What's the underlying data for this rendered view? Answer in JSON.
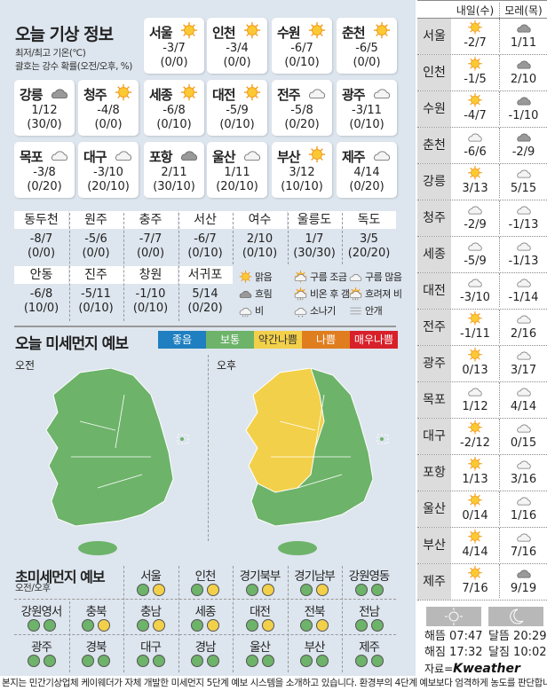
{
  "title": "오늘 기상 정보",
  "subtitle_1": "최저/최고 기온(℃)",
  "subtitle_2": "괄호는 강수 확률(오전/오후, %)",
  "cities": [
    {
      "name": "서울",
      "icon": "sun",
      "temp": "-3/7",
      "rain": "(0/0)"
    },
    {
      "name": "인천",
      "icon": "sun",
      "temp": "-3/4",
      "rain": "(0/0)"
    },
    {
      "name": "수원",
      "icon": "sun",
      "temp": "-6/7",
      "rain": "(0/10)"
    },
    {
      "name": "춘천",
      "icon": "sun",
      "temp": "-6/5",
      "rain": "(0/0)"
    },
    {
      "name": "강릉",
      "icon": "cloud-dark",
      "temp": "1/12",
      "rain": "(30/0)"
    },
    {
      "name": "청주",
      "icon": "sun",
      "temp": "-4/8",
      "rain": "(0/0)"
    },
    {
      "name": "세종",
      "icon": "sun",
      "temp": "-6/8",
      "rain": "(0/10)"
    },
    {
      "name": "대전",
      "icon": "sun",
      "temp": "-5/9",
      "rain": "(0/10)"
    },
    {
      "name": "전주",
      "icon": "cloud",
      "temp": "-5/8",
      "rain": "(0/20)"
    },
    {
      "name": "광주",
      "icon": "cloud",
      "temp": "-3/11",
      "rain": "(0/10)"
    },
    {
      "name": "목포",
      "icon": "cloud",
      "temp": "-3/8",
      "rain": "(0/20)"
    },
    {
      "name": "대구",
      "icon": "cloud",
      "temp": "-3/10",
      "rain": "(20/10)"
    },
    {
      "name": "포항",
      "icon": "cloud-dark",
      "temp": "2/11",
      "rain": "(30/10)"
    },
    {
      "name": "울산",
      "icon": "cloud",
      "temp": "1/11",
      "rain": "(20/10)"
    },
    {
      "name": "부산",
      "icon": "sun",
      "temp": "3/12",
      "rain": "(10/10)"
    },
    {
      "name": "제주",
      "icon": "cloud",
      "temp": "4/14",
      "rain": "(0/20)"
    }
  ],
  "small_cities": [
    {
      "name": "동두천",
      "temp": "-8/7",
      "rain": "(0/0)"
    },
    {
      "name": "원주",
      "temp": "-5/6",
      "rain": "(0/0)"
    },
    {
      "name": "충주",
      "temp": "-7/7",
      "rain": "(0/0)"
    },
    {
      "name": "서산",
      "temp": "-6/7",
      "rain": "(0/10)"
    },
    {
      "name": "여수",
      "temp": "2/10",
      "rain": "(0/10)"
    },
    {
      "name": "울릉도",
      "temp": "1/7",
      "rain": "(30/30)"
    },
    {
      "name": "독도",
      "temp": "3/5",
      "rain": "(20/20)"
    },
    {
      "name": "안동",
      "temp": "-6/8",
      "rain": "(10/0)"
    },
    {
      "name": "진주",
      "temp": "-5/11",
      "rain": "(0/10)"
    },
    {
      "name": "창원",
      "temp": "-1/10",
      "rain": "(0/10)"
    },
    {
      "name": "서귀포",
      "temp": "5/14",
      "rain": "(0/20)"
    }
  ],
  "legend": [
    {
      "icon": "sun",
      "label": "맑음"
    },
    {
      "icon": "sun-cloud",
      "label": "구름 조금"
    },
    {
      "icon": "cloud",
      "label": "구름 많음"
    },
    {
      "icon": "cloud-dark",
      "label": "흐림"
    },
    {
      "icon": "rain-sun",
      "label": "비온 후 갬"
    },
    {
      "icon": "sun-rain",
      "label": "흐려져 비"
    },
    {
      "icon": "rain",
      "label": "비"
    },
    {
      "icon": "shower",
      "label": "소나기"
    },
    {
      "icon": "fog",
      "label": "안개"
    }
  ],
  "dust": {
    "title": "오늘 미세먼지 예보",
    "scale": [
      {
        "label": "좋음",
        "color": "#1f7fc0"
      },
      {
        "label": "보통",
        "color": "#6db36a"
      },
      {
        "label": "약간나쁨",
        "color": "#f3d04a"
      },
      {
        "label": "나쁨",
        "color": "#e07d1f"
      },
      {
        "label": "매우나쁨",
        "color": "#d8202a"
      }
    ],
    "am_label": "오전",
    "pm_label": "오후"
  },
  "ultrafine": {
    "title": "초미세먼지 예보",
    "subtitle": "오전/오후",
    "regions": [
      {
        "name": "서울",
        "am": "보통",
        "pm": "약간나쁨"
      },
      {
        "name": "인천",
        "am": "보통",
        "pm": "약간나쁨"
      },
      {
        "name": "경기북부",
        "am": "보통",
        "pm": "약간나쁨"
      },
      {
        "name": "경기남부",
        "am": "보통",
        "pm": "약간나쁨"
      },
      {
        "name": "강원영동",
        "am": "보통",
        "pm": "보통"
      },
      {
        "name": "강원영서",
        "am": "보통",
        "pm": "보통"
      },
      {
        "name": "충북",
        "am": "보통",
        "pm": "약간나쁨"
      },
      {
        "name": "충남",
        "am": "보통",
        "pm": "약간나쁨"
      },
      {
        "name": "세종",
        "am": "보통",
        "pm": "약간나쁨"
      },
      {
        "name": "대전",
        "am": "보통",
        "pm": "약간나쁨"
      },
      {
        "name": "전북",
        "am": "보통",
        "pm": "약간나쁨"
      },
      {
        "name": "전남",
        "am": "보통",
        "pm": "보통"
      },
      {
        "name": "광주",
        "am": "보통",
        "pm": "보통"
      },
      {
        "name": "경북",
        "am": "보통",
        "pm": "보통"
      },
      {
        "name": "대구",
        "am": "보통",
        "pm": "보통"
      },
      {
        "name": "경남",
        "am": "보통",
        "pm": "보통"
      },
      {
        "name": "울산",
        "am": "보통",
        "pm": "보통"
      },
      {
        "name": "부산",
        "am": "보통",
        "pm": "보통"
      },
      {
        "name": "제주",
        "am": "보통",
        "pm": "보통"
      }
    ]
  },
  "forecast": {
    "col1": "내일(수)",
    "col2": "모레(목)",
    "rows": [
      {
        "name": "서울",
        "d1_icon": "sun",
        "d1": "-2/7",
        "d2_icon": "cloud-dark",
        "d2": "1/11"
      },
      {
        "name": "인천",
        "d1_icon": "sun",
        "d1": "-1/5",
        "d2_icon": "cloud-dark",
        "d2": "2/10"
      },
      {
        "name": "수원",
        "d1_icon": "sun",
        "d1": "-4/7",
        "d2_icon": "cloud-dark",
        "d2": "-1/10"
      },
      {
        "name": "춘천",
        "d1_icon": "cloud",
        "d1": "-6/6",
        "d2_icon": "cloud-dark",
        "d2": "-2/9"
      },
      {
        "name": "강릉",
        "d1_icon": "sun",
        "d1": "3/13",
        "d2_icon": "cloud",
        "d2": "5/15"
      },
      {
        "name": "청주",
        "d1_icon": "cloud",
        "d1": "-2/9",
        "d2_icon": "cloud",
        "d2": "-1/13"
      },
      {
        "name": "세종",
        "d1_icon": "cloud",
        "d1": "-5/9",
        "d2_icon": "cloud",
        "d2": "-1/13"
      },
      {
        "name": "대전",
        "d1_icon": "cloud",
        "d1": "-3/10",
        "d2_icon": "cloud",
        "d2": "-1/14"
      },
      {
        "name": "전주",
        "d1_icon": "sun",
        "d1": "-1/11",
        "d2_icon": "cloud",
        "d2": "2/16"
      },
      {
        "name": "광주",
        "d1_icon": "sun",
        "d1": "0/13",
        "d2_icon": "cloud",
        "d2": "3/17"
      },
      {
        "name": "목포",
        "d1_icon": "cloud",
        "d1": "1/12",
        "d2_icon": "cloud",
        "d2": "4/14"
      },
      {
        "name": "대구",
        "d1_icon": "sun",
        "d1": "-2/12",
        "d2_icon": "cloud",
        "d2": "0/15"
      },
      {
        "name": "포항",
        "d1_icon": "sun",
        "d1": "1/13",
        "d2_icon": "cloud",
        "d2": "3/16"
      },
      {
        "name": "울산",
        "d1_icon": "sun",
        "d1": "0/14",
        "d2_icon": "cloud",
        "d2": "1/16"
      },
      {
        "name": "부산",
        "d1_icon": "sun",
        "d1": "4/14",
        "d2_icon": "cloud",
        "d2": "7/16"
      },
      {
        "name": "제주",
        "d1_icon": "sun",
        "d1": "7/16",
        "d2_icon": "cloud-dark",
        "d2": "9/19"
      }
    ]
  },
  "sun_moon": {
    "sunrise": "해뜸 07:47",
    "sunset": "해짐 17:32",
    "moonrise": "달뜸 20:29",
    "moonset": "달짐 10:02"
  },
  "source": "자료=",
  "source_logo": "Kweather",
  "footer": "본지는 민간기상업체 케이웨더가 자체 개발한 미세먼지 5단계 예보 시스템을 소개하고 있습니다. 환경부의 4단계 예보보다 엄격하게 농도를 판단합니다."
}
